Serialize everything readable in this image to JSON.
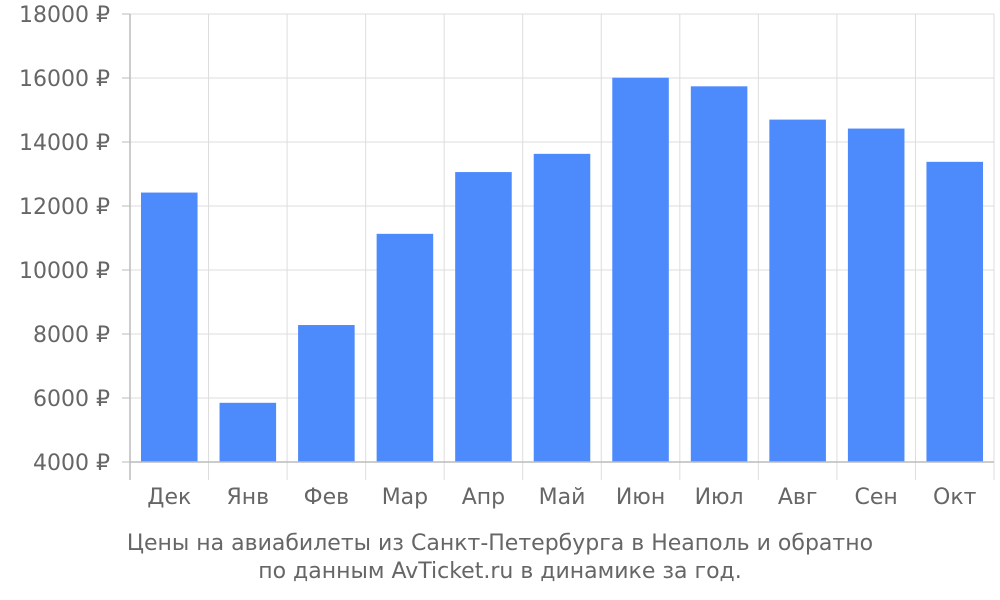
{
  "caption": {
    "line1": "Цены на авиабилеты из Санкт-Петербурга в Неаполь и обратно",
    "line2": "по данным AvTicket.ru в динамике за год."
  },
  "colors": {
    "bar": "#4d8afc",
    "grid": "#dddddd",
    "axis": "#bbbbbb",
    "text": "#666666"
  },
  "chart_data": {
    "type": "bar",
    "categories": [
      "Дек",
      "Янв",
      "Фев",
      "Мар",
      "Апр",
      "Май",
      "Июн",
      "Июл",
      "Авг",
      "Сен",
      "Окт"
    ],
    "values": [
      12420,
      5850,
      8280,
      11130,
      13060,
      13630,
      16010,
      15740,
      14700,
      14420,
      13380
    ],
    "ylim": [
      4000,
      18000
    ],
    "yticks": [
      4000,
      6000,
      8000,
      10000,
      12000,
      14000,
      16000,
      18000
    ],
    "ytick_labels": [
      "4000 ₽",
      "6000 ₽",
      "8000 ₽",
      "10000 ₽",
      "12000 ₽",
      "14000 ₽",
      "16000 ₽",
      "18000 ₽"
    ],
    "grid": true,
    "legend": "none"
  }
}
